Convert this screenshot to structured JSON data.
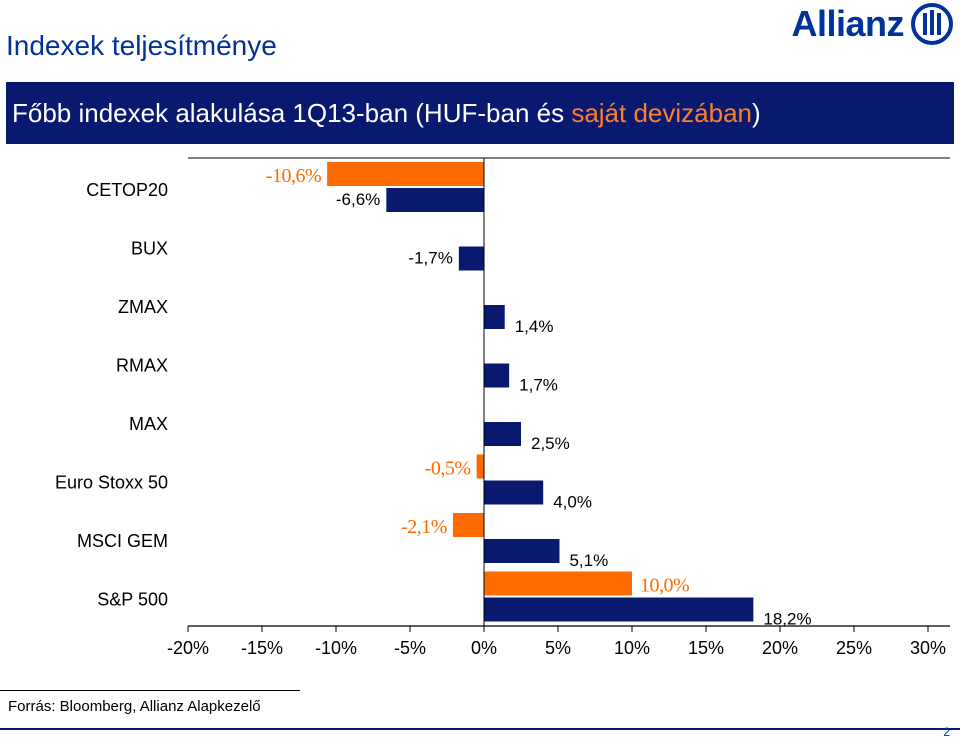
{
  "header": {
    "title": "Indexek teljesítménye",
    "logo_text": "Allianz"
  },
  "banner": {
    "text_main": "Főbb indexek alakulása 1Q13-ban (HUF-ban és ",
    "text_accent": "saját devizában",
    "text_end": ")"
  },
  "colors": {
    "huf": "#0a1970",
    "local": "#ff6a00",
    "banner": "#0a1970",
    "title": "#003399"
  },
  "chart_data": {
    "type": "bar",
    "orientation": "horizontal",
    "categories": [
      "CETOP20",
      "BUX",
      "ZMAX",
      "RMAX",
      "MAX",
      "Euro Stoxx 50",
      "MSCI GEM",
      "S&P 500"
    ],
    "series": [
      {
        "key": "local",
        "values": [
          -10.6,
          null,
          null,
          null,
          null,
          -0.5,
          -2.1,
          10.0
        ],
        "labels": [
          "-10,6%",
          "",
          "",
          "",
          "",
          "-0,5%",
          "-2,1%",
          "10,0%"
        ]
      },
      {
        "key": "huf",
        "values": [
          -6.6,
          -1.7,
          1.4,
          1.7,
          2.5,
          4.0,
          5.1,
          18.2
        ],
        "labels": [
          "-6,6%",
          "-1,7%",
          "1,4%",
          "1,7%",
          "2,5%",
          "4,0%",
          "5,1%",
          "18,2%"
        ]
      }
    ],
    "xlim": [
      -20,
      30
    ],
    "xticks": [
      -20,
      -15,
      -10,
      -5,
      0,
      5,
      10,
      15,
      20,
      25,
      30
    ],
    "xtick_labels": [
      "-20%",
      "-15%",
      "-10%",
      "-5%",
      "0%",
      "5%",
      "10%",
      "15%",
      "20%",
      "25%",
      "30%"
    ],
    "grid": false,
    "legend": "none"
  },
  "footer": {
    "source": "Forrás: Bloomberg, Allianz Alapkezelő",
    "page_number": "2"
  }
}
